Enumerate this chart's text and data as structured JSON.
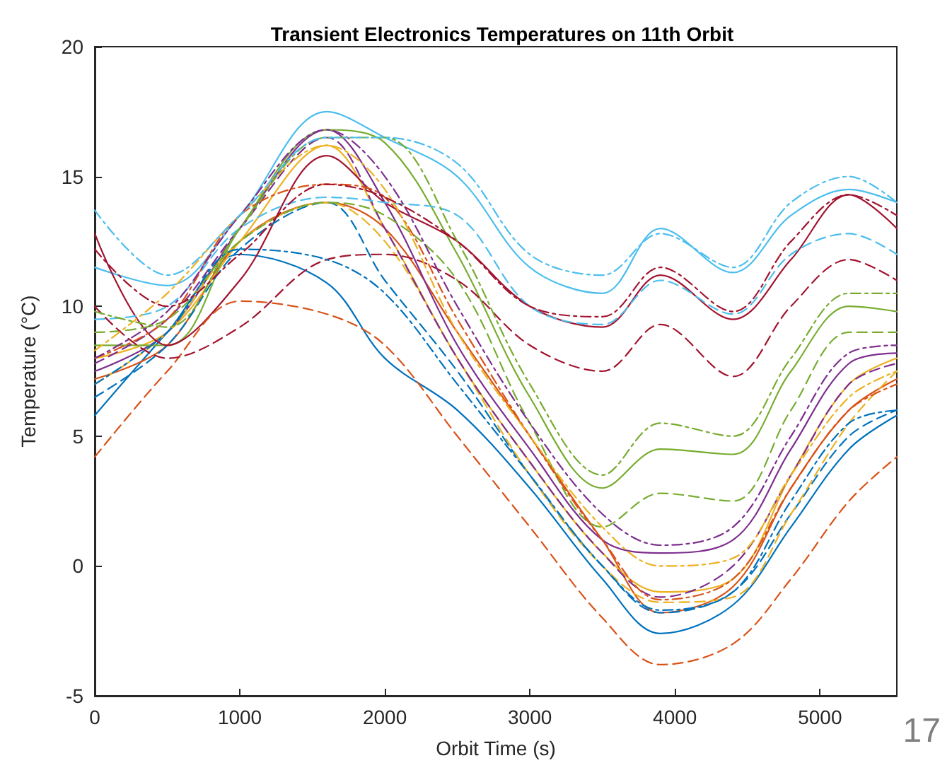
{
  "chart_data": {
    "type": "line",
    "title": "Transient Electronics Temperatures on 11th Orbit",
    "xlabel": "Orbit Time (s)",
    "ylabel": "Temperature (°C)",
    "annotations": [
      "17"
    ],
    "x": [
      0,
      500,
      1000,
      1600,
      2000,
      2500,
      3000,
      3500,
      3900,
      4400,
      4800,
      5200,
      5530
    ],
    "xlim": [
      0,
      5530
    ],
    "xticks": [
      0,
      1000,
      2000,
      3000,
      4000,
      5000
    ],
    "ylim": [
      -5,
      20
    ],
    "yticks": [
      -5,
      0,
      5,
      10,
      15,
      20
    ],
    "grid": false,
    "marker": "none",
    "series": [
      {
        "color": "#0072bd",
        "line_style": "solid",
        "values": [
          5.8,
          9,
          12,
          10.9,
          8,
          6,
          3,
          -0.5,
          -2.6,
          -1.5,
          1.5,
          4.5,
          5.8
        ]
      },
      {
        "color": "#d95319",
        "line_style": "solid",
        "values": [
          7.2,
          8.5,
          12.5,
          14,
          13,
          9,
          5,
          1,
          -1.8,
          -0.8,
          3,
          6,
          7.2
        ]
      },
      {
        "color": "#edb120",
        "line_style": "solid",
        "values": [
          8,
          9,
          12.5,
          16.2,
          13,
          8,
          4,
          0.5,
          -1,
          -0.5,
          3.5,
          7,
          8
        ]
      },
      {
        "color": "#7e2f8e",
        "line_style": "solid",
        "values": [
          7.5,
          9,
          13,
          16.8,
          14,
          8.5,
          4.5,
          1,
          0.5,
          1,
          4.5,
          7.8,
          8.2
        ]
      },
      {
        "color": "#77ac30",
        "line_style": "solid",
        "values": [
          8.5,
          8.5,
          13,
          16.8,
          16.3,
          12,
          6.5,
          3,
          4.5,
          4.3,
          7.5,
          10,
          9.8
        ]
      },
      {
        "color": "#4dbeee",
        "line_style": "solid",
        "values": [
          11.5,
          10.8,
          13.5,
          17.5,
          16.5,
          15,
          11.5,
          10.5,
          13,
          11.3,
          13.5,
          14.5,
          14
        ]
      },
      {
        "color": "#a2142f",
        "line_style": "solid",
        "values": [
          12.8,
          8.5,
          11,
          15.8,
          14,
          12.5,
          10,
          9.2,
          11.2,
          9.5,
          11.8,
          14.3,
          13
        ]
      },
      {
        "color": "#0072bd",
        "line_style": "dashed",
        "values": [
          6.5,
          8.5,
          12.2,
          14,
          11,
          7.5,
          3.5,
          0,
          -1.8,
          -1,
          2,
          5,
          6
        ]
      },
      {
        "color": "#d95319",
        "line_style": "dashed",
        "values": [
          4.2,
          7.5,
          10.2,
          9.7,
          8.5,
          5,
          1.5,
          -2,
          -3.8,
          -3,
          -0.5,
          2.5,
          4.2
        ]
      },
      {
        "color": "#edb120",
        "line_style": "dashed",
        "values": [
          7,
          9,
          12.5,
          14,
          12.5,
          8,
          3.5,
          0,
          -1.4,
          -1.2,
          2,
          5.5,
          7.5
        ]
      },
      {
        "color": "#7e2f8e",
        "line_style": "dashed",
        "values": [
          7.8,
          9.5,
          13,
          16.5,
          13,
          8,
          4,
          0.5,
          -1.2,
          0,
          3.5,
          7,
          7.8
        ]
      },
      {
        "color": "#77ac30",
        "line_style": "dashed",
        "values": [
          9,
          9.5,
          12.5,
          14,
          13.5,
          11,
          5.5,
          1.5,
          2.8,
          2.5,
          6,
          9,
          9
        ]
      },
      {
        "color": "#4dbeee",
        "line_style": "dashed",
        "values": [
          9.5,
          10,
          13,
          14.2,
          14,
          13.5,
          10,
          9.3,
          11,
          9.7,
          12,
          12.8,
          12
        ]
      },
      {
        "color": "#a2142f",
        "line_style": "dashed",
        "values": [
          10,
          8,
          9.2,
          11.8,
          12,
          11,
          8.5,
          7.5,
          9.3,
          7.3,
          10,
          11.8,
          11
        ]
      },
      {
        "color": "#0072bd",
        "line_style": "dashdot",
        "values": [
          7,
          9,
          12.2,
          11.8,
          10.5,
          7,
          3.5,
          0,
          -1.7,
          -1,
          2.5,
          5.5,
          6
        ]
      },
      {
        "color": "#d95319",
        "line_style": "dashdot",
        "values": [
          8,
          9.5,
          13.5,
          14.7,
          14.2,
          9.5,
          5,
          1,
          -1.3,
          -0.5,
          3,
          6,
          7
        ]
      },
      {
        "color": "#edb120",
        "line_style": "dashdot",
        "values": [
          8.3,
          10.5,
          13.5,
          16.2,
          14.5,
          9,
          5,
          1.5,
          0,
          0.3,
          3.5,
          6.5,
          7.5
        ]
      },
      {
        "color": "#7e2f8e",
        "line_style": "dashdot",
        "values": [
          8,
          9.8,
          13.5,
          16.8,
          15,
          10,
          5.5,
          2,
          0.8,
          1.5,
          5,
          8.2,
          8.5
        ]
      },
      {
        "color": "#77ac30",
        "line_style": "dashdot",
        "values": [
          9.8,
          9.2,
          13,
          16.5,
          16.5,
          12.5,
          7,
          3.5,
          5.5,
          5,
          8,
          10.5,
          10.5
        ]
      },
      {
        "color": "#4dbeee",
        "line_style": "dashdot",
        "values": [
          13.7,
          11.2,
          13.5,
          16.5,
          16.5,
          15.5,
          12,
          11.2,
          12.8,
          11.5,
          14,
          15,
          14
        ]
      },
      {
        "color": "#a2142f",
        "line_style": "dashdot",
        "values": [
          12.2,
          10,
          12,
          14.7,
          14.2,
          12.5,
          10,
          9.6,
          11.5,
          9.8,
          12.5,
          14.3,
          13.5
        ]
      }
    ]
  }
}
